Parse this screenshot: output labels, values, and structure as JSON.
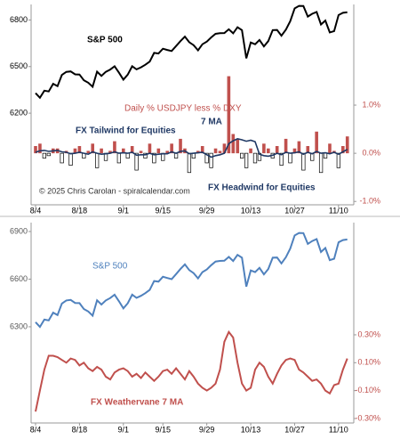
{
  "chart_data": [
    {
      "type": "line",
      "categories": [
        "8/4",
        null,
        null,
        null,
        null,
        null,
        null,
        null,
        null,
        null,
        "8/18",
        null,
        null,
        null,
        null,
        null,
        null,
        null,
        null,
        null,
        "9/1",
        null,
        null,
        null,
        null,
        null,
        null,
        null,
        null,
        "9/15",
        null,
        null,
        null,
        null,
        null,
        null,
        null,
        null,
        null,
        "9/29",
        null,
        null,
        null,
        null,
        null,
        null,
        null,
        null,
        null,
        "10/13",
        null,
        null,
        null,
        null,
        null,
        null,
        null,
        null,
        null,
        "10/27",
        null,
        null,
        null,
        null,
        null,
        null,
        null,
        null,
        null,
        "11/10",
        null,
        null
      ],
      "ylim": [
        5610,
        6900
      ],
      "yticks": [
        6200,
        6500,
        6800
      ],
      "y2lim": [
        -1.07,
        3.09
      ],
      "y2ticks": [
        {
          "value": -1,
          "label": "-1.0%"
        },
        {
          "value": 0,
          "label": "0.0%"
        },
        {
          "value": 1,
          "label": "1.0%"
        }
      ],
      "series": [
        {
          "name": "S&P 500",
          "type": "line",
          "color": "#000000",
          "values": [
            6329,
            6299,
            6345,
            6340,
            6389,
            6374,
            6446,
            6466,
            6469,
            6450,
            6449,
            6412,
            6396,
            6370,
            6467,
            6440,
            6466,
            6481,
            6502,
            6460,
            6416,
            6448,
            6502,
            6482,
            6495,
            6512,
            6532,
            6588,
            6584,
            6615,
            6607,
            6600,
            6632,
            6664,
            6693,
            6657,
            6638,
            6605,
            6644,
            6661,
            6688,
            6711,
            6715,
            6716,
            6740,
            6714,
            6753,
            6735,
            6553,
            6655,
            6644,
            6671,
            6630,
            6664,
            6735,
            6736,
            6699,
            6738,
            6792,
            6875,
            6891,
            6890,
            6822,
            6840,
            6852,
            6771,
            6796,
            6720,
            6728,
            6832,
            6846,
            6850
          ]
        },
        {
          "name": "Daily % USDJPY less % DXY",
          "type": "bar",
          "axis": "y2",
          "color": "#c0504d",
          "negative_color": "#000000",
          "values": [
            0.15,
            0.2,
            -0.1,
            -0.05,
            0.1,
            0.1,
            -0.2,
            0.05,
            -0.25,
            0.1,
            0.15,
            -0.1,
            0.05,
            0.2,
            -0.3,
            0.1,
            -0.15,
            0.05,
            0.25,
            -0.2,
            0.1,
            -0.1,
            0.15,
            -0.35,
            0.05,
            -0.1,
            0.2,
            -0.2,
            0.1,
            -0.15,
            0.05,
            0.2,
            -0.1,
            0.3,
            0.1,
            -0.4,
            -0.1,
            0.05,
            0.15,
            -0.2,
            -0.3,
            0.1,
            0.05,
            0.2,
            1.6,
            0.4,
            0.3,
            -0.1,
            -0.3,
            0.1,
            -0.2,
            -0.15,
            0.2,
            0.1,
            -0.1,
            0.15,
            -0.25,
            0.3,
            -0.2,
            0.1,
            0.25,
            -0.35,
            0.15,
            -0.15,
            0.45,
            -0.4,
            -0.1,
            0.2,
            0.05,
            -0.3,
            0.15,
            0.35
          ]
        },
        {
          "name": "7 MA",
          "type": "line",
          "axis": "y2",
          "color": "#1f3864",
          "values": [
            0.02,
            0.05,
            0.06,
            0.04,
            0.05,
            0.06,
            0.03,
            0.02,
            -0.01,
            0.0,
            0.02,
            0.0,
            -0.02,
            0.03,
            0.0,
            -0.02,
            -0.01,
            0.0,
            0.03,
            0.0,
            0.01,
            0.0,
            0.02,
            -0.04,
            -0.03,
            -0.03,
            0.0,
            -0.03,
            -0.02,
            -0.01,
            -0.01,
            0.03,
            0.0,
            0.04,
            0.05,
            -0.01,
            0.0,
            0.01,
            0.02,
            -0.03,
            -0.08,
            -0.05,
            -0.03,
            0.0,
            0.2,
            0.26,
            0.3,
            0.28,
            0.25,
            0.27,
            0.24,
            -0.02,
            -0.05,
            -0.06,
            -0.04,
            0.0,
            -0.03,
            0.02,
            0.0,
            0.01,
            0.03,
            -0.02,
            0.02,
            -0.01,
            0.04,
            0.0,
            0.01,
            -0.01,
            0.02,
            -0.02,
            0.03,
            0.08
          ]
        }
      ],
      "annotations": [
        "FX Tailwind for Equities",
        "FX Headwind for Equities",
        "© 2025 Chris Carolan - spiralcalendar.com"
      ]
    },
    {
      "type": "line",
      "categories": [
        "8/4",
        null,
        null,
        null,
        null,
        null,
        null,
        null,
        null,
        null,
        "8/18",
        null,
        null,
        null,
        null,
        null,
        null,
        null,
        null,
        null,
        "9/1",
        null,
        null,
        null,
        null,
        null,
        null,
        null,
        null,
        "9/15",
        null,
        null,
        null,
        null,
        null,
        null,
        null,
        null,
        null,
        "9/29",
        null,
        null,
        null,
        null,
        null,
        null,
        null,
        null,
        null,
        "10/13",
        null,
        null,
        null,
        null,
        null,
        null,
        null,
        null,
        null,
        "10/27",
        null,
        null,
        null,
        null,
        null,
        null,
        null,
        null,
        null,
        "11/10",
        null,
        null
      ],
      "ylim": [
        5694,
        6956
      ],
      "yticks": [
        6300,
        6600,
        6900
      ],
      "y2lim": [
        -0.332,
        1.104
      ],
      "y2ticks": [
        {
          "value": -0.3,
          "label": "-0.30%"
        },
        {
          "value": -0.1,
          "label": "-0.10%"
        },
        {
          "value": 0.1,
          "label": "0.10%"
        },
        {
          "value": 0.3,
          "label": "0.30%"
        }
      ],
      "series": [
        {
          "name": "S&P 500",
          "type": "line",
          "color": "#4f81bd",
          "values": [
            6329,
            6299,
            6345,
            6340,
            6389,
            6374,
            6446,
            6466,
            6469,
            6450,
            6449,
            6412,
            6396,
            6370,
            6467,
            6440,
            6466,
            6481,
            6502,
            6460,
            6416,
            6448,
            6502,
            6482,
            6495,
            6512,
            6532,
            6588,
            6584,
            6615,
            6607,
            6600,
            6632,
            6664,
            6693,
            6657,
            6638,
            6605,
            6644,
            6661,
            6688,
            6711,
            6715,
            6716,
            6740,
            6714,
            6753,
            6735,
            6553,
            6655,
            6644,
            6671,
            6630,
            6664,
            6735,
            6736,
            6699,
            6738,
            6792,
            6875,
            6891,
            6890,
            6822,
            6840,
            6852,
            6771,
            6796,
            6720,
            6728,
            6832,
            6846,
            6850
          ]
        },
        {
          "name": "FX Weathervane 7 MA",
          "type": "line",
          "axis": "y2",
          "color": "#c0504d",
          "values": [
            -0.25,
            -0.1,
            0.05,
            0.15,
            0.15,
            0.14,
            0.12,
            0.1,
            0.13,
            0.12,
            0.08,
            0.1,
            0.06,
            0.04,
            0.07,
            0.05,
            0.0,
            -0.02,
            0.03,
            0.05,
            0.06,
            0.04,
            0.0,
            0.02,
            -0.01,
            0.03,
            0.0,
            -0.03,
            0.0,
            0.04,
            0.05,
            0.02,
            0.06,
            0.02,
            -0.02,
            0.04,
            0.0,
            -0.05,
            -0.08,
            -0.1,
            -0.08,
            -0.05,
            0.05,
            0.25,
            0.32,
            0.28,
            0.1,
            -0.05,
            -0.1,
            -0.08,
            0.05,
            0.1,
            0.07,
            0.0,
            -0.05,
            0.02,
            0.08,
            0.12,
            0.13,
            0.12,
            0.05,
            0.03,
            0.0,
            -0.03,
            -0.02,
            -0.05,
            -0.1,
            -0.12,
            -0.06,
            -0.05,
            0.05,
            0.13
          ]
        }
      ]
    }
  ]
}
